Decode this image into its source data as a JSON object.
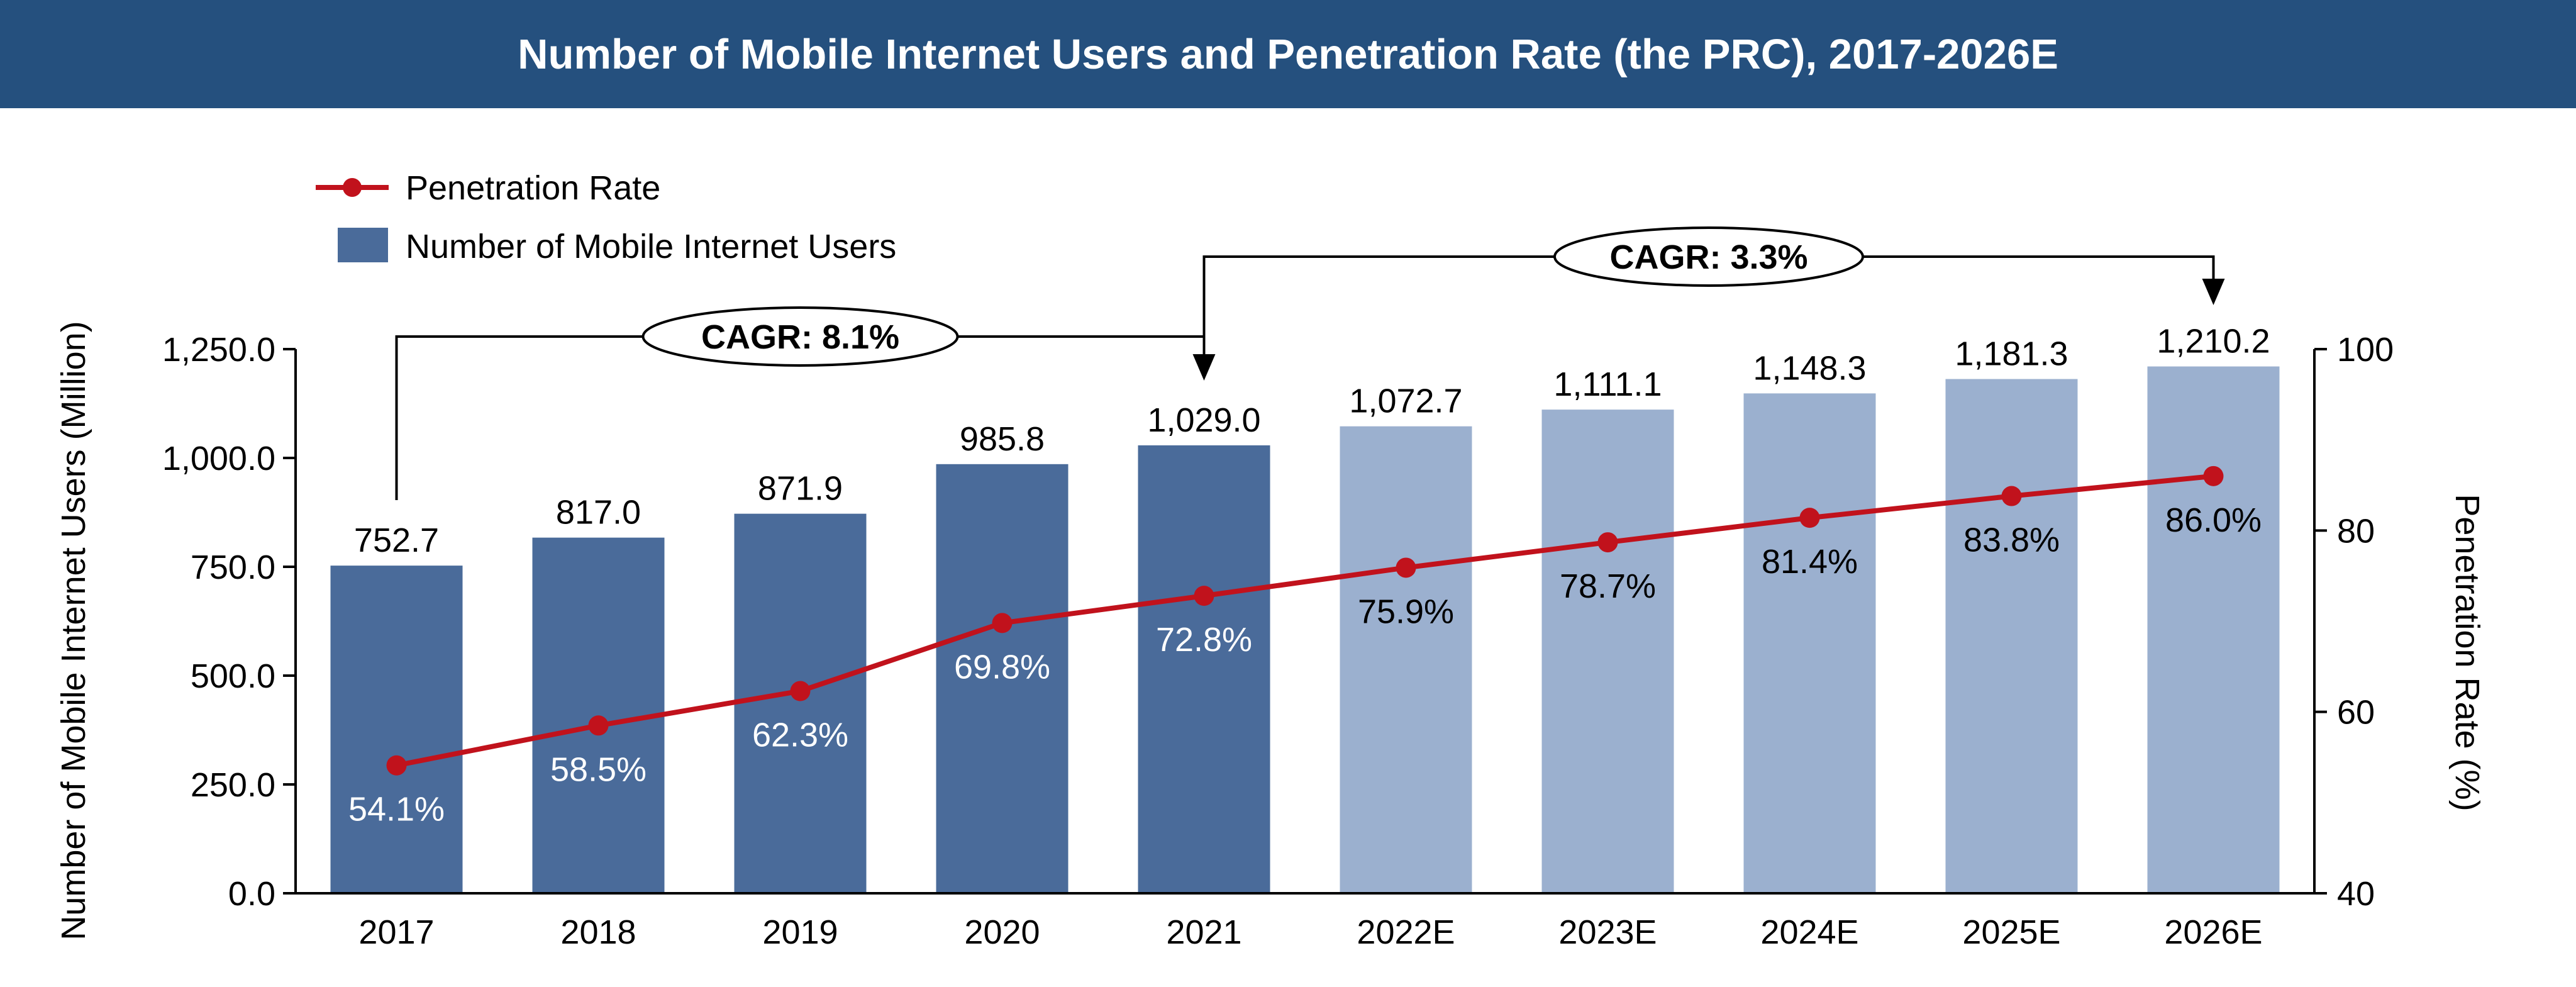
{
  "title": "Number of Mobile Internet Users and Penetration Rate (the PRC), 2017-2026E",
  "colors": {
    "title_bg": "#25507e",
    "bar_actual": "#4a6b9a",
    "bar_estimate": "#9bb0cf",
    "line": "#c1121c",
    "axis": "#000000"
  },
  "chart_data": {
    "type": "bar",
    "categories": [
      "2017",
      "2018",
      "2019",
      "2020",
      "2021",
      "2022E",
      "2023E",
      "2024E",
      "2025E",
      "2026E"
    ],
    "series": [
      {
        "name": "Number of Mobile Internet Users",
        "axis": "left",
        "values": [
          752.7,
          817.0,
          871.9,
          985.8,
          1029.0,
          1072.7,
          1111.1,
          1148.3,
          1181.3,
          1210.2
        ],
        "labels": [
          "752.7",
          "817.0",
          "871.9",
          "985.8",
          "1,029.0",
          "1,072.7",
          "1,111.1",
          "1,148.3",
          "1,181.3",
          "1,210.2"
        ]
      },
      {
        "name": "Penetration Rate",
        "type": "line",
        "axis": "right",
        "values": [
          54.1,
          58.5,
          62.3,
          69.8,
          72.8,
          75.9,
          78.7,
          81.4,
          83.8,
          86.0
        ],
        "labels": [
          "54.1%",
          "58.5%",
          "62.3%",
          "69.8%",
          "72.8%",
          "75.9%",
          "78.7%",
          "81.4%",
          "83.8%",
          "86.0%"
        ]
      }
    ],
    "estimate_from_index": 5,
    "ylabel": "Number of Mobile Internet Users (Million)",
    "ylim": [
      0,
      1250
    ],
    "yticks": [
      0,
      250,
      500,
      750,
      1000,
      1250
    ],
    "ytick_labels": [
      "0.0",
      "250.0",
      "500.0",
      "750.0",
      "1,000.0",
      "1,250.0"
    ],
    "y2label": "Penetration Rate (%)",
    "y2lim": [
      40,
      100
    ],
    "y2ticks": [
      40,
      60,
      80,
      100
    ],
    "y2tick_labels": [
      "40",
      "60",
      "80",
      "100"
    ],
    "legend": {
      "placement": "top-left",
      "entries": [
        "Penetration Rate",
        "Number of Mobile Internet Users"
      ]
    },
    "annotations": [
      {
        "text": "CAGR: 8.1%",
        "from": "2017",
        "to": "2021"
      },
      {
        "text": "CAGR: 3.3%",
        "from": "2021",
        "to": "2026E"
      }
    ],
    "grid": false
  }
}
